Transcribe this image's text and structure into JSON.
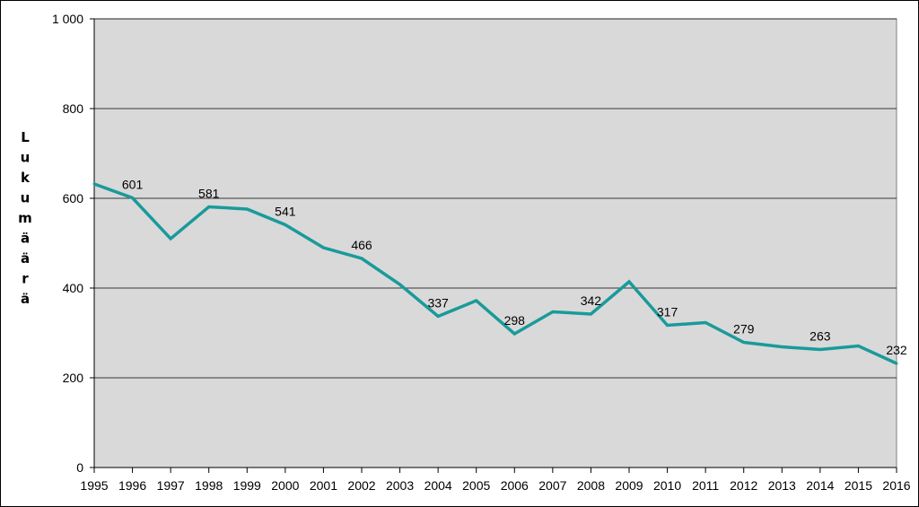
{
  "chart_data": {
    "type": "line",
    "title": "",
    "xlabel": "",
    "ylabel": "Lukumäärä",
    "x": [
      "1995",
      "1996",
      "1997",
      "1998",
      "1999",
      "2000",
      "2001",
      "2002",
      "2003",
      "2004",
      "2005",
      "2006",
      "2007",
      "2008",
      "2009",
      "2010",
      "2011",
      "2012",
      "2013",
      "2014",
      "2015",
      "2016"
    ],
    "series": [
      {
        "values": [
          632,
          601,
          510,
          581,
          576,
          541,
          490,
          466,
          408,
          337,
          372,
          298,
          347,
          342,
          414,
          317,
          323,
          279,
          269,
          263,
          271,
          232
        ],
        "color": "#1a9a9a"
      }
    ],
    "data_labels": {
      "1996": "601",
      "1998": "581",
      "2000": "541",
      "2002": "466",
      "2004": "337",
      "2006": "298",
      "2008": "342",
      "2010": "317",
      "2012": "279",
      "2014": "263",
      "2016": "232"
    },
    "ylim": [
      0,
      1000
    ],
    "yticks": [
      0,
      200,
      400,
      600,
      800,
      1000
    ],
    "ytick_labels": [
      "0",
      "200",
      "400",
      "600",
      "800",
      "1 000"
    ],
    "grid": true,
    "plot_background": "#d9d9d9",
    "gridline_color": "#000000"
  }
}
